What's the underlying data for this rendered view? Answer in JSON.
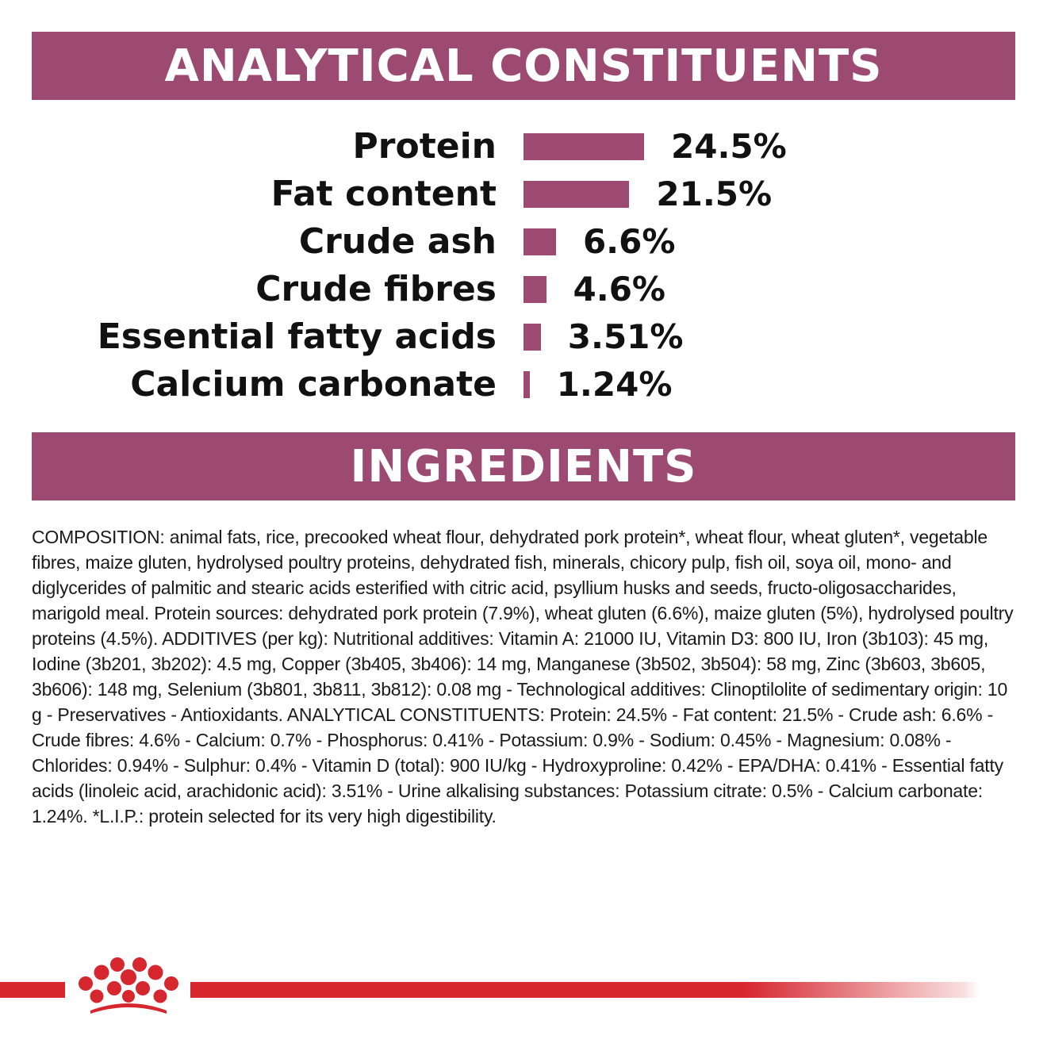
{
  "analytical_title": "ANALYTICAL CONSTITUENTS",
  "ingredients_title": "INGREDIENTS",
  "colors": {
    "banner": "#9c4a72",
    "bar": "#9c4a72",
    "brand_red": "#d6262e"
  },
  "constituents": [
    {
      "label": "Protein",
      "value": "24.5%",
      "percent": 24.5
    },
    {
      "label": "Fat content",
      "value": "21.5%",
      "percent": 21.5
    },
    {
      "label": "Crude ash",
      "value": "6.6%",
      "percent": 6.6
    },
    {
      "label": "Crude fibres",
      "value": "4.6%",
      "percent": 4.6
    },
    {
      "label": "Essential fatty acids",
      "value": "3.51%",
      "percent": 3.51
    },
    {
      "label": "Calcium carbonate",
      "value": "1.24%",
      "percent": 1.24
    }
  ],
  "composition_text": "COMPOSITION: animal fats, rice, precooked wheat flour, dehydrated pork protein*, wheat flour, wheat gluten*, vegetable fibres, maize gluten, hydrolysed poultry proteins, dehydrated fish, minerals, chicory pulp, fish oil, soya oil, mono- and diglycerides of palmitic and stearic acids esterified with citric acid, psyllium husks and seeds, fructo-oligosaccharides, marigold meal. Protein sources: dehydrated pork protein (7.9%), wheat gluten (6.6%), maize gluten (5%), hydrolysed poultry proteins (4.5%). ADDITIVES (per kg): Nutritional additives: Vitamin A: 21000 IU, Vitamin D3: 800 IU, Iron (3b103): 45 mg, Iodine (3b201, 3b202): 4.5 mg, Copper (3b405, 3b406): 14 mg, Manganese (3b502, 3b504): 58 mg, Zinc (3b603, 3b605, 3b606): 148 mg, Selenium (3b801, 3b811, 3b812): 0.08 mg - Technological additives: Clinoptilolite of sedimentary origin: 10 g - Preservatives - Antioxidants. ANALYTICAL CONSTITUENTS: Protein: 24.5% - Fat content: 21.5% - Crude ash: 6.6% - Crude fibres: 4.6% - Calcium: 0.7% - Phosphorus: 0.41% - Potassium: 0.9% - Sodium: 0.45% - Magnesium: 0.08% - Chlorides: 0.94% - Sulphur: 0.4% - Vitamin D (total): 900 IU/kg - Hydroxyproline: 0.42% - EPA/DHA: 0.41% - Essential fatty acids (linoleic acid, arachidonic acid): 3.51% - Urine alkalising substances: Potassium citrate: 0.5% - Calcium carbonate: 1.24%. *L.I.P.: protein selected for its very high digestibility.",
  "logo_icon": "crown-icon"
}
